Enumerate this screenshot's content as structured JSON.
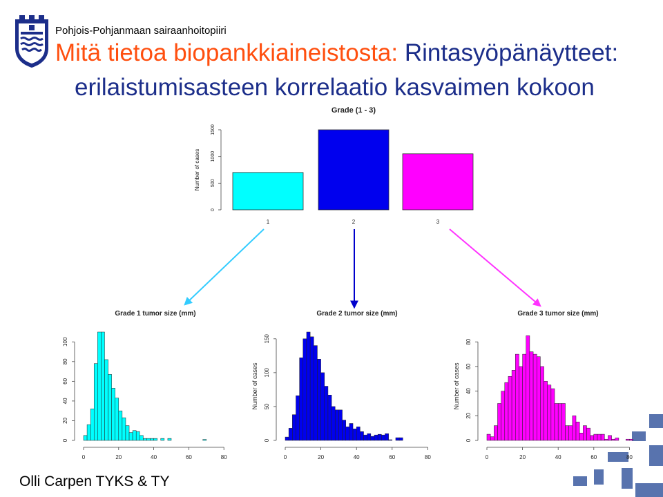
{
  "header": {
    "organization": "Pohjois-Pohjanmaan sairaanhoitopiiri",
    "title_part1": "Mitä tietoa biopankkiaineistosta:",
    "title_part2": " Rintasyöpänäytteet:",
    "title_line2": "erilaistumisasteen korrelaatio kasvaimen kokoon"
  },
  "footer": {
    "author": "Olli Carpen TYKS & TY"
  },
  "colors": {
    "org_text": "#000000",
    "title_accent": "#FF4F0F",
    "title_main": "#1C2E8A",
    "grade1": "#00FFFF",
    "grade2": "#0000EE",
    "grade3": "#FF00FF",
    "arrow1": "#33CCFF",
    "arrow2": "#0000CC",
    "arrow3": "#FF33FF"
  },
  "logo": {
    "icon": "shield-crest-icon"
  },
  "chart_data": [
    {
      "type": "bar",
      "title": "Grade (1 - 3)",
      "ylabel": "Number of cases",
      "xlabel": "",
      "categories": [
        "1",
        "2",
        "3"
      ],
      "values": [
        700,
        1500,
        1050
      ],
      "ylim": [
        0,
        1500
      ],
      "yticks": [
        0,
        500,
        1000,
        1500
      ],
      "colors": [
        "#00FFFF",
        "#0000EE",
        "#FF00FF"
      ],
      "grid": false
    },
    {
      "type": "bar",
      "title": "Grade 1 tumor size (mm)",
      "ylabel": "",
      "xlabel": "",
      "bin_width": 2,
      "x_start": 0,
      "values": [
        5,
        16,
        32,
        78,
        110,
        110,
        82,
        67,
        53,
        43,
        30,
        23,
        15,
        8,
        10,
        9,
        5,
        2,
        2,
        2,
        2,
        0,
        2,
        0,
        2,
        0,
        0,
        0,
        0,
        0,
        0,
        0,
        0,
        0,
        1,
        0,
        0,
        0,
        0,
        0,
        0
      ],
      "ylim": [
        0,
        110
      ],
      "yticks": [
        0,
        20,
        40,
        60,
        80,
        100
      ],
      "xticks": [
        0,
        20,
        40,
        60,
        80
      ],
      "color": "#00FFFF",
      "grid": false
    },
    {
      "type": "bar",
      "title": "Grade 2 tumor size (mm)",
      "ylabel": "Number of cases",
      "xlabel": "",
      "bin_width": 2,
      "x_start": 0,
      "values": [
        5,
        18,
        38,
        66,
        122,
        150,
        160,
        153,
        140,
        120,
        100,
        80,
        67,
        50,
        45,
        45,
        30,
        20,
        25,
        17,
        20,
        13,
        8,
        10,
        6,
        8,
        9,
        8,
        10,
        1,
        0,
        4,
        4,
        0,
        0,
        0,
        0,
        0,
        0,
        0,
        0
      ],
      "ylim": [
        0,
        160
      ],
      "yticks": [
        0,
        50,
        100,
        150
      ],
      "xticks": [
        0,
        20,
        40,
        60,
        80
      ],
      "color": "#0000EE",
      "grid": false
    },
    {
      "type": "bar",
      "title": "Grade 3 tumor size (mm)",
      "ylabel": "Number of cases",
      "xlabel": "",
      "bin_width": 2,
      "x_start": 0,
      "values": [
        5,
        3,
        12,
        30,
        40,
        47,
        52,
        57,
        70,
        60,
        70,
        85,
        72,
        70,
        68,
        60,
        48,
        45,
        42,
        30,
        30,
        30,
        12,
        12,
        20,
        15,
        6,
        12,
        10,
        4,
        5,
        5,
        5,
        1,
        4,
        1,
        2,
        0,
        0,
        1,
        1
      ],
      "ylim": [
        0,
        88
      ],
      "yticks": [
        0,
        20,
        40,
        60,
        80
      ],
      "xticks": [
        0,
        20,
        40,
        60,
        80
      ],
      "color": "#FF00FF",
      "grid": false
    }
  ]
}
